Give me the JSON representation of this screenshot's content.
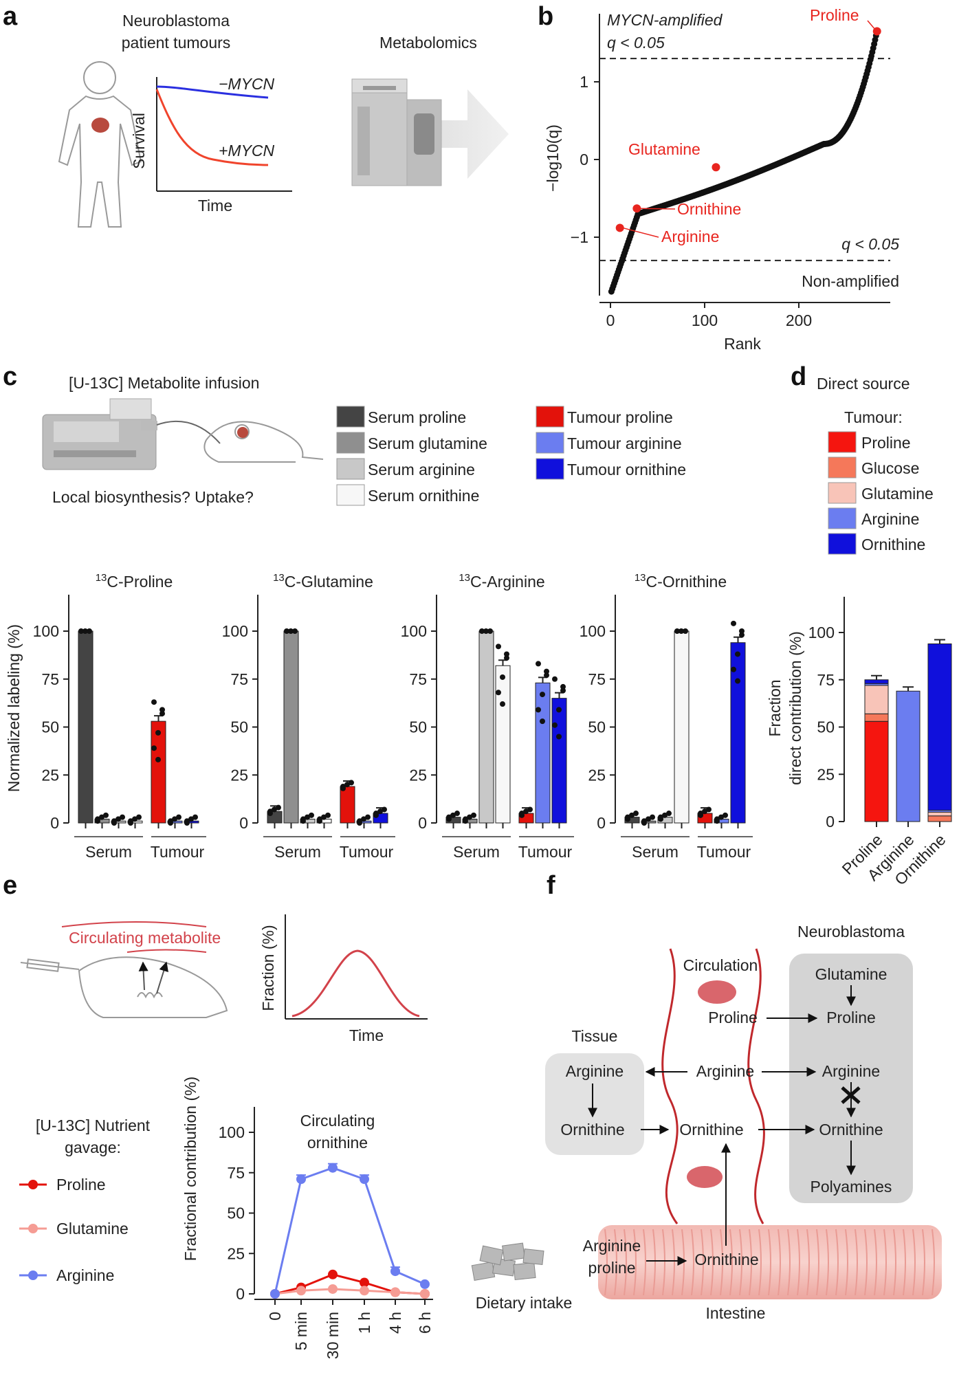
{
  "panels": {
    "a": "a",
    "b": "b",
    "c": "c",
    "d": "d",
    "e": "e",
    "f": "f"
  },
  "a": {
    "title_l1": "Neuroblastoma",
    "title_l2": "patient tumours",
    "metab": "Metabolomics",
    "survival": "Survival",
    "time": "Time",
    "minus": "−MYCN",
    "plus": "+MYCN",
    "colors": {
      "minus": "#2a2fe0",
      "plus": "#f0442c"
    }
  },
  "b": {
    "top_label": "MYCN-amplified",
    "top_q": "q < 0.05",
    "bottom_q": "q < 0.05",
    "bottom_label": "Non-amplified",
    "ylabel": "−log10(q)",
    "xlabel": "Rank",
    "highlights": {
      "proline": "Proline",
      "glutamine": "Glutamine",
      "ornithine": "Ornithine",
      "arginine": "Arginine"
    },
    "chart_data": {
      "type": "scatter",
      "xlim": [
        0,
        290
      ],
      "ylim": [
        -1.8,
        1.8
      ],
      "xticks": [
        0,
        100,
        200
      ],
      "yticks": [
        -1,
        0,
        1
      ],
      "thresholds": [
        1.3,
        -1.3
      ],
      "n_points": 283,
      "highlighted": [
        {
          "name": "Proline",
          "x": 283,
          "y": 1.65
        },
        {
          "name": "Glutamine",
          "x": 112,
          "y": -0.1
        },
        {
          "name": "Ornithine",
          "x": 28,
          "y": -0.63
        },
        {
          "name": "Arginine",
          "x": 10,
          "y": -0.88
        }
      ]
    }
  },
  "c": {
    "infusion": "[U-13C] Metabolite infusion",
    "question": "Local biosynthesis? Uptake?",
    "legend": [
      {
        "label": "Serum proline",
        "color": "#444444"
      },
      {
        "label": "Serum glutamine",
        "color": "#8f8f8f"
      },
      {
        "label": "Serum arginine",
        "color": "#c8c8c8"
      },
      {
        "label": "Serum ornithine",
        "color": "#f7f7f7"
      },
      {
        "label": "Tumour proline",
        "color": "#e3120b"
      },
      {
        "label": "Tumour arginine",
        "color": "#6b7df0"
      },
      {
        "label": "Tumour ornithine",
        "color": "#1010dc"
      }
    ],
    "ylabel": "Normalized labeling (%)",
    "group_serum": "Serum",
    "group_tumour": "Tumour",
    "chart_data": [
      {
        "type": "bar",
        "title": "13C-Proline",
        "categories": [
          "Serum proline",
          "Serum glutamine",
          "Serum arginine",
          "Serum ornithine",
          "Tumour proline",
          "Tumour arginine",
          "Tumour ornithine"
        ],
        "values": [
          100,
          2,
          1,
          1,
          53,
          1,
          1
        ],
        "ylim": [
          0,
          100
        ],
        "yticks": [
          0,
          25,
          50,
          75,
          100
        ]
      },
      {
        "type": "bar",
        "title": "13C-Glutamine",
        "categories": [
          "Serum proline",
          "Serum glutamine",
          "Serum arginine",
          "Serum ornithine",
          "Tumour proline",
          "Tumour arginine",
          "Tumour ornithine"
        ],
        "values": [
          6,
          100,
          2,
          2,
          19,
          1,
          5
        ],
        "ylim": [
          0,
          100
        ],
        "yticks": [
          0,
          25,
          50,
          75,
          100
        ]
      },
      {
        "type": "bar",
        "title": "13C-Arginine",
        "categories": [
          "Serum proline",
          "Serum glutamine",
          "Serum arginine",
          "Serum ornithine",
          "Tumour proline",
          "Tumour arginine",
          "Tumour ornithine"
        ],
        "values": [
          3,
          2,
          100,
          82,
          5,
          73,
          65
        ],
        "ylim": [
          0,
          100
        ],
        "yticks": [
          0,
          25,
          50,
          75,
          100
        ]
      },
      {
        "type": "bar",
        "title": "13C-Ornithine",
        "categories": [
          "Serum proline",
          "Serum glutamine",
          "Serum arginine",
          "Serum ornithine",
          "Tumour proline",
          "Tumour arginine",
          "Tumour ornithine"
        ],
        "values": [
          3,
          1,
          3,
          100,
          5,
          2,
          94
        ],
        "ylim": [
          0,
          100
        ],
        "yticks": [
          0,
          25,
          50,
          75,
          100
        ]
      }
    ]
  },
  "d": {
    "title": "Direct source",
    "tumour": "Tumour:",
    "legend": [
      {
        "label": "Proline",
        "color": "#f5150f"
      },
      {
        "label": "Glucose",
        "color": "#f5785a"
      },
      {
        "label": "Glutamine",
        "color": "#f8c4b8"
      },
      {
        "label": "Arginine",
        "color": "#6b7df0"
      },
      {
        "label": "Ornithine",
        "color": "#1010dc"
      }
    ],
    "ylabel_l1": "Fraction",
    "ylabel_l2": "direct contribution (%)",
    "chart_data": {
      "type": "bar",
      "stacked": true,
      "categories": [
        "Proline",
        "Arginine",
        "Ornithine"
      ],
      "ylim": [
        0,
        100
      ],
      "yticks": [
        0,
        25,
        50,
        75,
        100
      ],
      "series": [
        {
          "name": "Proline",
          "values": [
            53,
            0,
            0
          ]
        },
        {
          "name": "Glucose",
          "values": [
            4,
            0,
            3
          ]
        },
        {
          "name": "Glutamine",
          "values": [
            15,
            0,
            2
          ]
        },
        {
          "name": "Arginine",
          "values": [
            1,
            69,
            1
          ]
        },
        {
          "name": "Ornithine",
          "values": [
            2,
            0,
            88
          ]
        }
      ]
    }
  },
  "e": {
    "circulating": "Circulating metabolite",
    "fraction": "Fraction (%)",
    "time": "Time",
    "gavage_l1": "[U-13C] Nutrient",
    "gavage_l2": "gavage:",
    "series_legend": [
      {
        "label": "Proline",
        "color": "#e3120b"
      },
      {
        "label": "Glutamine",
        "color": "#f59c94"
      },
      {
        "label": "Arginine",
        "color": "#6b7df0"
      }
    ],
    "ylabel": "Fractional contribution (%)",
    "chart_title_l1": "Circulating",
    "chart_title_l2": "ornithine",
    "chart_data": {
      "type": "line",
      "x": [
        "0",
        "5 min",
        "30 min",
        "1 h",
        "4 h",
        "6 h"
      ],
      "ylim": [
        0,
        100
      ],
      "yticks": [
        0,
        25,
        50,
        75,
        100
      ],
      "series": [
        {
          "name": "Proline",
          "values": [
            0,
            4,
            12,
            7,
            1,
            0
          ]
        },
        {
          "name": "Glutamine",
          "values": [
            0,
            2,
            3,
            2,
            1,
            0
          ]
        },
        {
          "name": "Arginine",
          "values": [
            0,
            71,
            78,
            71,
            14,
            6
          ]
        }
      ]
    }
  },
  "f": {
    "neuroblastoma": "Neuroblastoma",
    "circulation": "Circulation",
    "tissue": "Tissue",
    "intestine": "Intestine",
    "dietary": "Dietary intake",
    "nodes": {
      "nb_glutamine": "Glutamine",
      "nb_proline": "Proline",
      "nb_arginine": "Arginine",
      "nb_ornithine": "Ornithine",
      "nb_polyamines": "Polyamines",
      "c_proline": "Proline",
      "c_arginine": "Arginine",
      "c_ornithine": "Ornithine",
      "t_arginine": "Arginine",
      "t_ornithine": "Ornithine",
      "i_argpro_l1": "Arginine",
      "i_argpro_l2": "proline",
      "i_ornithine": "Ornithine"
    }
  }
}
